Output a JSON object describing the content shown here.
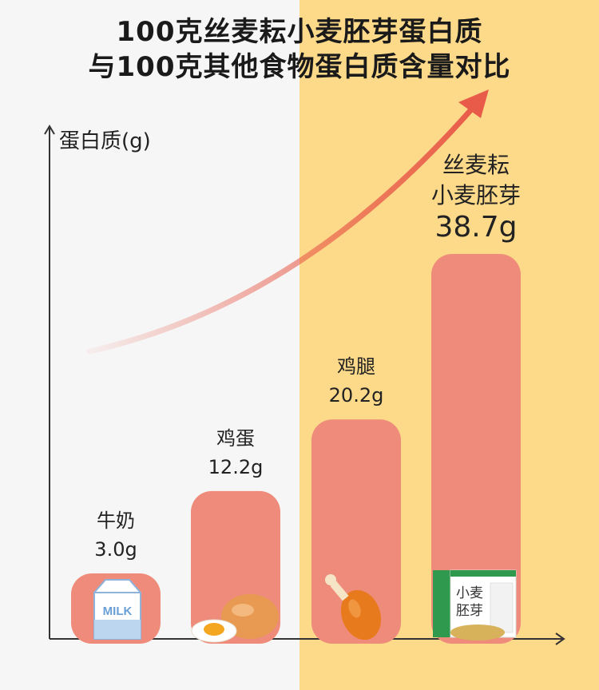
{
  "title_line1": "100克丝麦耘小麦胚芽蛋白质",
  "title_line2": "与100克其他食物蛋白质含量对比",
  "colors": {
    "bar": "#ef8b7a",
    "bg_left": "#f6f6f6",
    "bg_right": "#fdd98a",
    "arrow": "#e85b49",
    "axis": "#333333"
  },
  "chart_data": {
    "type": "bar",
    "ylabel": "蛋白质(g)",
    "xlabel": "",
    "ylim": [
      0,
      40
    ],
    "categories": [
      "牛奶",
      "鸡蛋",
      "鸡腿",
      "丝麦耘 小麦胚芽"
    ],
    "values": [
      3.0,
      12.2,
      20.2,
      38.7
    ],
    "value_labels": [
      "3.0g",
      "12.2g",
      "20.2g",
      "38.7g"
    ],
    "highlight_category": "丝麦耘 小麦胚芽",
    "bar_items": [
      {
        "name_lines": [
          "牛奶"
        ],
        "value_label": "3.0g",
        "icon": "milk-carton-icon"
      },
      {
        "name_lines": [
          "鸡蛋"
        ],
        "value_label": "12.2g",
        "icon": "egg-icon"
      },
      {
        "name_lines": [
          "鸡腿"
        ],
        "value_label": "20.2g",
        "icon": "chicken-leg-icon"
      },
      {
        "name_lines": [
          "丝麦耘",
          "小麦胚芽"
        ],
        "value_label": "38.7g",
        "icon": "wheat-germ-product-icon"
      }
    ],
    "product_box_text": "小麦胚芽",
    "milk_carton_text": "MILK"
  }
}
